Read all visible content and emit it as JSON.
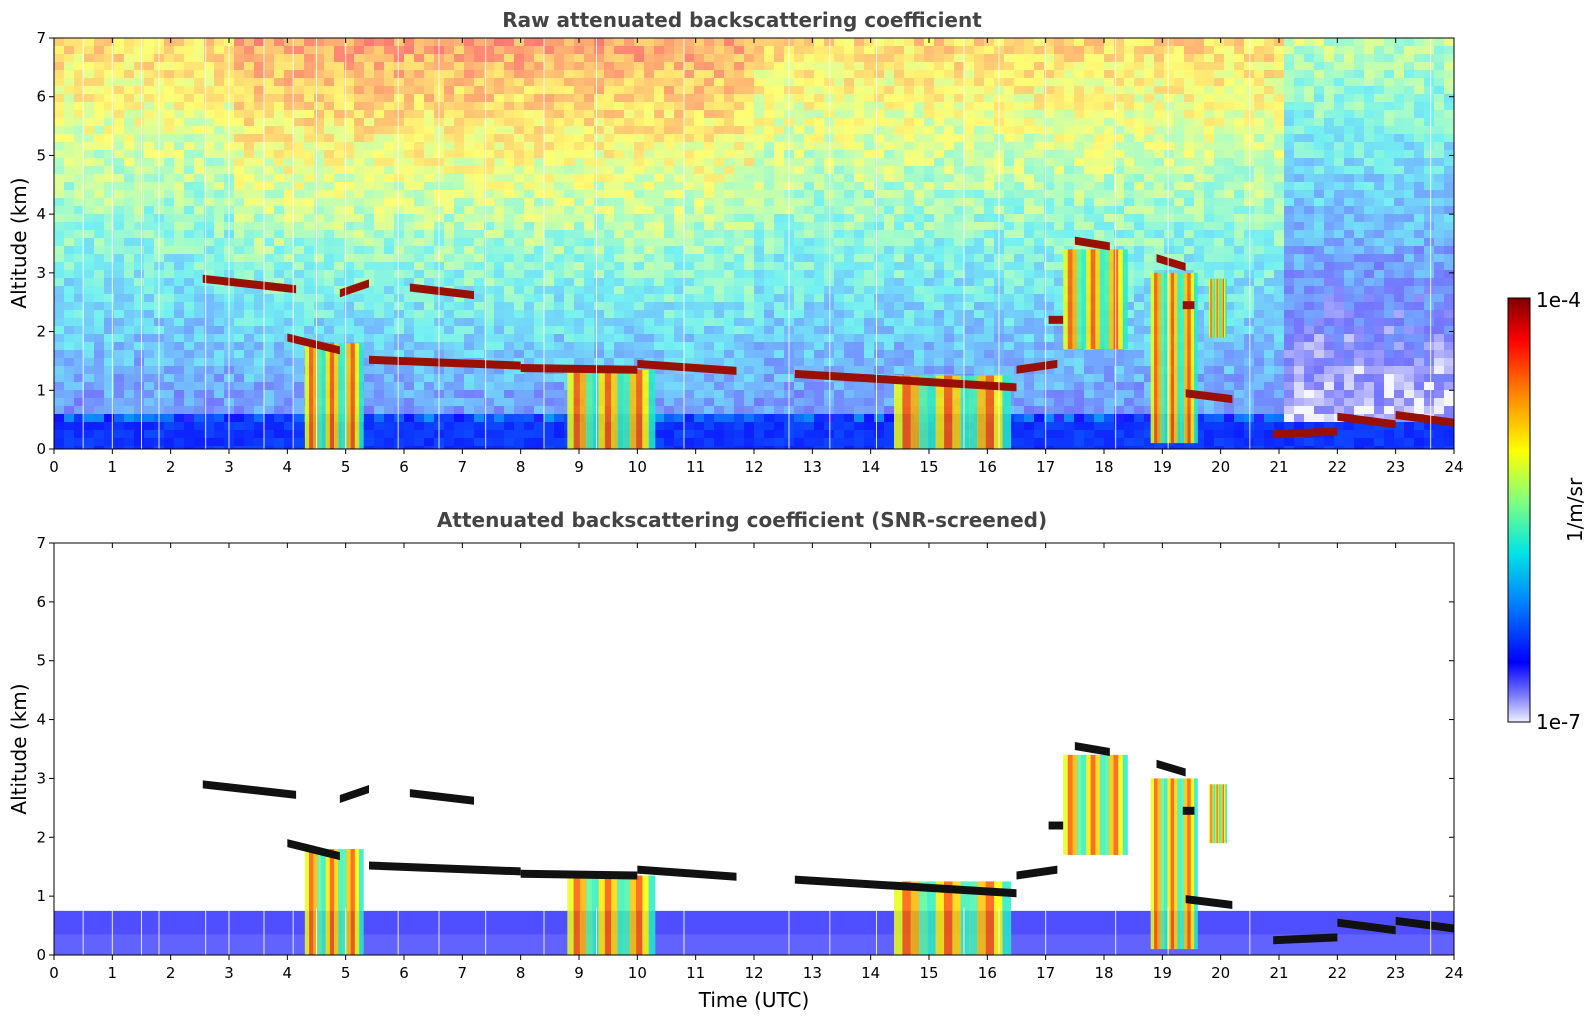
{
  "chart_data": [
    {
      "type": "heatmap",
      "title": "Raw attenuated backscattering coefficient",
      "xlabel": "",
      "ylabel": "Altitude (km)",
      "xlim": [
        0,
        24
      ],
      "ylim": [
        0,
        7
      ],
      "xticks": [
        "0",
        "1",
        "2",
        "3",
        "4",
        "5",
        "6",
        "7",
        "8",
        "9",
        "10",
        "11",
        "12",
        "13",
        "14",
        "15",
        "16",
        "17",
        "18",
        "19",
        "20",
        "21",
        "22",
        "23",
        "24"
      ],
      "yticks": [
        "0",
        "1",
        "2",
        "3",
        "4",
        "5",
        "6",
        "7"
      ],
      "screened": false,
      "cloud_layers": [
        {
          "t0": 2.55,
          "t1": 4.15,
          "alt0": 2.9,
          "alt1": 2.72
        },
        {
          "t0": 4.9,
          "t1": 5.4,
          "alt0": 2.65,
          "alt1": 2.82
        },
        {
          "t0": 6.1,
          "t1": 7.2,
          "alt0": 2.75,
          "alt1": 2.62
        },
        {
          "t0": 4.0,
          "t1": 4.9,
          "alt0": 1.9,
          "alt1": 1.68
        },
        {
          "t0": 5.4,
          "t1": 8.0,
          "alt0": 1.52,
          "alt1": 1.42
        },
        {
          "t0": 8.0,
          "t1": 10.0,
          "alt0": 1.38,
          "alt1": 1.35
        },
        {
          "t0": 10.0,
          "t1": 11.7,
          "alt0": 1.45,
          "alt1": 1.33
        },
        {
          "t0": 12.7,
          "t1": 16.5,
          "alt0": 1.28,
          "alt1": 1.05
        },
        {
          "t0": 16.5,
          "t1": 17.2,
          "alt0": 1.35,
          "alt1": 1.45
        },
        {
          "t0": 17.05,
          "t1": 17.3,
          "alt0": 2.2,
          "alt1": 2.2
        },
        {
          "t0": 17.5,
          "t1": 18.1,
          "alt0": 3.55,
          "alt1": 3.45
        },
        {
          "t0": 18.9,
          "t1": 19.4,
          "alt0": 3.25,
          "alt1": 3.1
        },
        {
          "t0": 19.35,
          "t1": 19.55,
          "alt0": 2.45,
          "alt1": 2.45
        },
        {
          "t0": 19.4,
          "t1": 20.2,
          "alt0": 0.95,
          "alt1": 0.85
        },
        {
          "t0": 20.9,
          "t1": 22.0,
          "alt0": 0.25,
          "alt1": 0.3
        },
        {
          "t0": 22.0,
          "t1": 23.0,
          "alt0": 0.55,
          "alt1": 0.42
        },
        {
          "t0": 23.0,
          "t1": 24.0,
          "alt0": 0.58,
          "alt1": 0.45
        }
      ],
      "fall_streaks": [
        {
          "t0": 4.3,
          "t1": 5.3,
          "top": 1.8,
          "bottom": 0.0
        },
        {
          "t0": 8.8,
          "t1": 10.3,
          "top": 1.35,
          "bottom": 0.0
        },
        {
          "t0": 14.4,
          "t1": 16.4,
          "top": 1.25,
          "bottom": 0.0
        },
        {
          "t0": 17.3,
          "t1": 18.4,
          "top": 3.4,
          "bottom": 1.7
        },
        {
          "t0": 18.8,
          "t1": 19.6,
          "top": 3.0,
          "bottom": 0.1
        },
        {
          "t0": 19.8,
          "t1": 20.1,
          "top": 2.9,
          "bottom": 1.9
        }
      ]
    },
    {
      "type": "heatmap",
      "title": "Attenuated backscattering coefficient (SNR-screened)",
      "xlabel": "Time (UTC)",
      "ylabel": "Altitude (km)",
      "xlim": [
        0,
        24
      ],
      "ylim": [
        0,
        7
      ],
      "xticks": [
        "0",
        "1",
        "2",
        "3",
        "4",
        "5",
        "6",
        "7",
        "8",
        "9",
        "10",
        "11",
        "12",
        "13",
        "14",
        "15",
        "16",
        "17",
        "18",
        "19",
        "20",
        "21",
        "22",
        "23",
        "24"
      ],
      "yticks": [
        "0",
        "1",
        "2",
        "3",
        "4",
        "5",
        "6",
        "7"
      ],
      "screened": true,
      "boundary_layer_top_km": 0.75,
      "cloud_layers": [
        {
          "t0": 2.55,
          "t1": 4.15,
          "alt0": 2.9,
          "alt1": 2.72
        },
        {
          "t0": 4.9,
          "t1": 5.4,
          "alt0": 2.65,
          "alt1": 2.82
        },
        {
          "t0": 6.1,
          "t1": 7.2,
          "alt0": 2.75,
          "alt1": 2.62
        },
        {
          "t0": 4.0,
          "t1": 4.9,
          "alt0": 1.9,
          "alt1": 1.68
        },
        {
          "t0": 5.4,
          "t1": 8.0,
          "alt0": 1.52,
          "alt1": 1.42
        },
        {
          "t0": 8.0,
          "t1": 10.0,
          "alt0": 1.38,
          "alt1": 1.35
        },
        {
          "t0": 10.0,
          "t1": 11.7,
          "alt0": 1.45,
          "alt1": 1.33
        },
        {
          "t0": 12.7,
          "t1": 16.5,
          "alt0": 1.28,
          "alt1": 1.05
        },
        {
          "t0": 16.5,
          "t1": 17.2,
          "alt0": 1.35,
          "alt1": 1.45
        },
        {
          "t0": 17.05,
          "t1": 17.3,
          "alt0": 2.2,
          "alt1": 2.2
        },
        {
          "t0": 17.5,
          "t1": 18.1,
          "alt0": 3.55,
          "alt1": 3.45
        },
        {
          "t0": 18.9,
          "t1": 19.4,
          "alt0": 3.25,
          "alt1": 3.1
        },
        {
          "t0": 19.35,
          "t1": 19.55,
          "alt0": 2.45,
          "alt1": 2.45
        },
        {
          "t0": 19.4,
          "t1": 20.2,
          "alt0": 0.95,
          "alt1": 0.85
        },
        {
          "t0": 20.9,
          "t1": 22.0,
          "alt0": 0.25,
          "alt1": 0.3
        },
        {
          "t0": 22.0,
          "t1": 23.0,
          "alt0": 0.55,
          "alt1": 0.42
        },
        {
          "t0": 23.0,
          "t1": 24.0,
          "alt0": 0.58,
          "alt1": 0.45
        }
      ],
      "fall_streaks": [
        {
          "t0": 4.3,
          "t1": 5.3,
          "top": 1.8,
          "bottom": 0.0
        },
        {
          "t0": 8.8,
          "t1": 10.3,
          "top": 1.35,
          "bottom": 0.0
        },
        {
          "t0": 14.4,
          "t1": 16.4,
          "top": 1.25,
          "bottom": 0.0
        },
        {
          "t0": 17.3,
          "t1": 18.4,
          "top": 3.4,
          "bottom": 1.7
        },
        {
          "t0": 18.8,
          "t1": 19.6,
          "top": 3.0,
          "bottom": 0.1
        },
        {
          "t0": 19.8,
          "t1": 20.1,
          "top": 2.9,
          "bottom": 1.9
        }
      ]
    }
  ],
  "colorbar": {
    "label": "1/m/sr",
    "min_label": "1e-7",
    "max_label": "1e-4",
    "colors": [
      "#f0f0ff",
      "#7f7fff",
      "#0000ff",
      "#0080ff",
      "#00e5e5",
      "#7fff7f",
      "#ffff00",
      "#ff8000",
      "#ff0000",
      "#800000"
    ]
  }
}
